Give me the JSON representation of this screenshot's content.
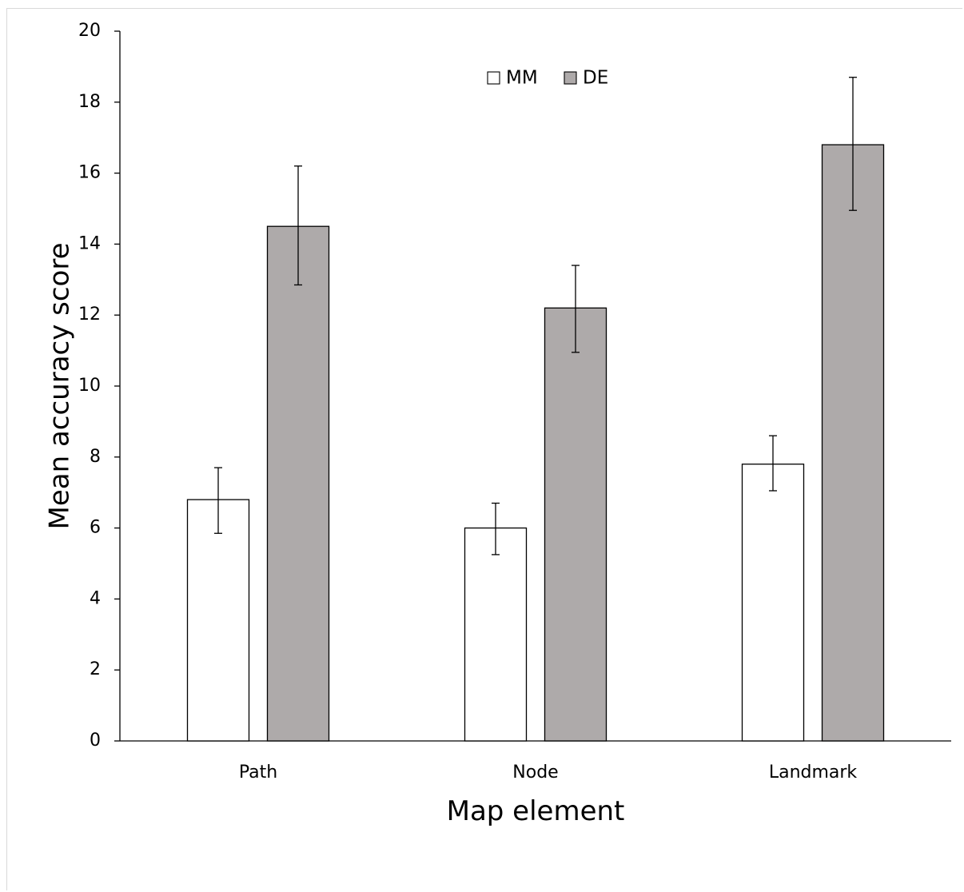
{
  "chart_data": {
    "type": "bar",
    "categories": [
      "Path",
      "Node",
      "Landmark"
    ],
    "series": [
      {
        "name": "MM",
        "values": [
          6.8,
          6.0,
          7.8
        ],
        "error_low": [
          5.85,
          5.25,
          7.05
        ],
        "error_high": [
          7.7,
          6.7,
          8.6
        ],
        "color": "#ffffff"
      },
      {
        "name": "DE",
        "values": [
          14.5,
          12.2,
          16.8
        ],
        "error_low": [
          12.85,
          10.95,
          14.95
        ],
        "error_high": [
          16.2,
          13.4,
          18.7
        ],
        "color": "#aeaaaa"
      }
    ],
    "xlabel": "Map element",
    "ylabel": "Mean accuracy score",
    "ylim": [
      0,
      20
    ],
    "yticks": [
      "0",
      "2",
      "4",
      "6",
      "8",
      "10",
      "12",
      "14",
      "16",
      "18",
      "20"
    ],
    "grid": false,
    "legend": "top-center"
  }
}
